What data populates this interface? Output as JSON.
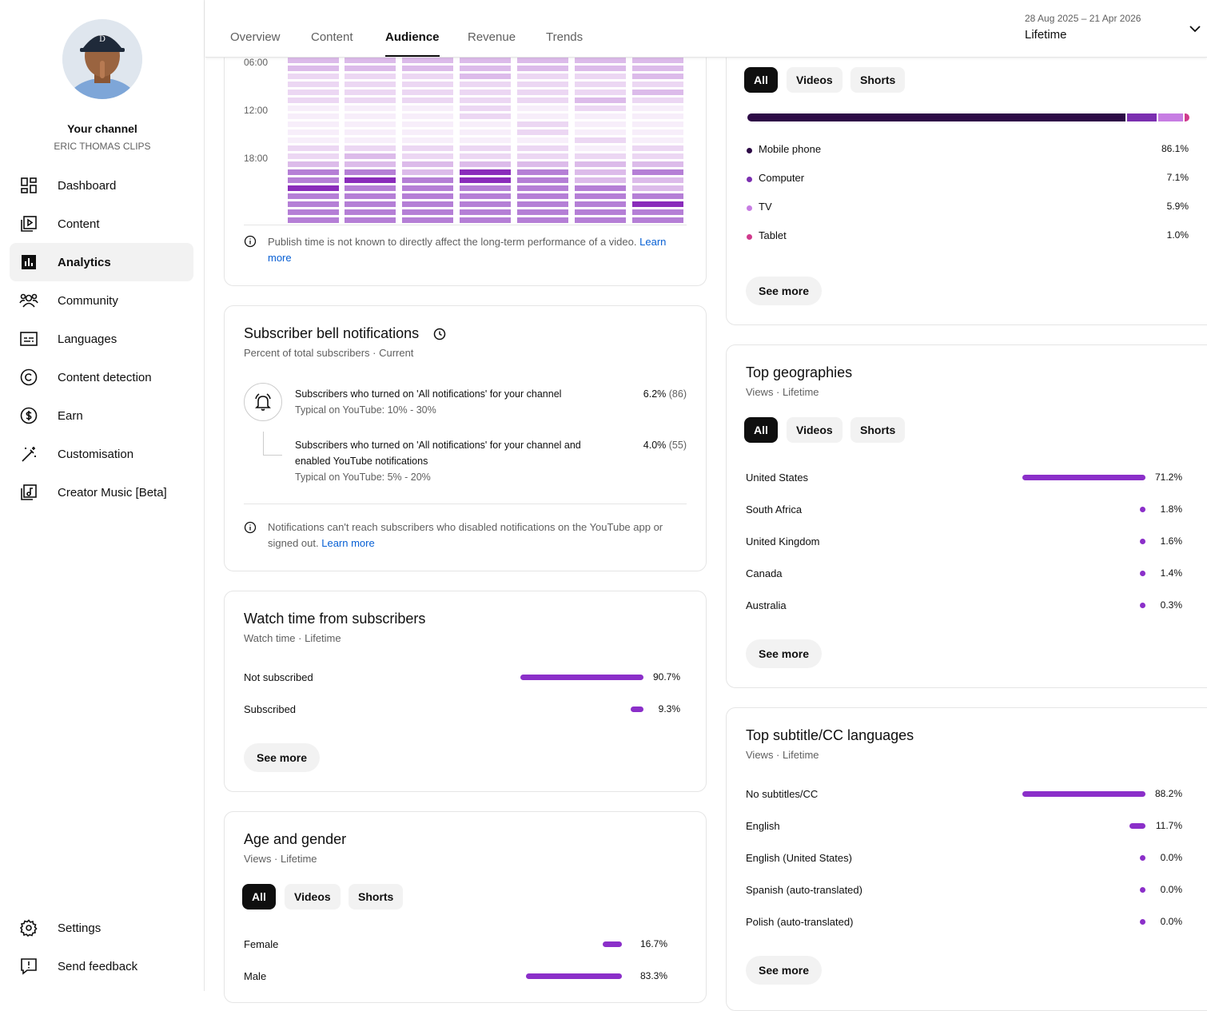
{
  "sidebar": {
    "channel_title": "Your channel",
    "channel_name": "ERIC THOMAS CLIPS",
    "items": [
      {
        "label": "Dashboard",
        "icon": "dashboard-icon"
      },
      {
        "label": "Content",
        "icon": "content-icon"
      },
      {
        "label": "Analytics",
        "icon": "analytics-icon",
        "active": true
      },
      {
        "label": "Community",
        "icon": "community-icon"
      },
      {
        "label": "Languages",
        "icon": "languages-icon"
      },
      {
        "label": "Content detection",
        "icon": "copyright-icon"
      },
      {
        "label": "Earn",
        "icon": "earn-icon"
      },
      {
        "label": "Customisation",
        "icon": "customisation-icon"
      },
      {
        "label": "Creator Music [Beta]",
        "icon": "music-icon"
      }
    ],
    "bottom": [
      {
        "label": "Settings",
        "icon": "gear-icon"
      },
      {
        "label": "Send feedback",
        "icon": "feedback-icon"
      }
    ]
  },
  "header": {
    "tabs": [
      "Overview",
      "Content",
      "Audience",
      "Revenue",
      "Trends"
    ],
    "active_tab": "Audience",
    "date_range": "28 Aug 2025 – 21 Apr 2026",
    "period": "Lifetime"
  },
  "when_viewers_on": {
    "time_labels": [
      "06:00",
      "12:00",
      "18:00"
    ],
    "heatmap_levels": [
      [
        2,
        2,
        2,
        2,
        2,
        2,
        2
      ],
      [
        2,
        2,
        2,
        2,
        2,
        2,
        2
      ],
      [
        1,
        1,
        1,
        2,
        1,
        1,
        2
      ],
      [
        1,
        1,
        1,
        1,
        1,
        1,
        1
      ],
      [
        1,
        1,
        1,
        1,
        1,
        1,
        2
      ],
      [
        1,
        1,
        1,
        1,
        1,
        2,
        1
      ],
      [
        0,
        0,
        0,
        1,
        0,
        1,
        0
      ],
      [
        0,
        0,
        0,
        1,
        0,
        0,
        0
      ],
      [
        0,
        0,
        0,
        0,
        1,
        0,
        0
      ],
      [
        0,
        0,
        0,
        0,
        1,
        0,
        0
      ],
      [
        0,
        0,
        0,
        0,
        0,
        1,
        0
      ],
      [
        1,
        1,
        1,
        1,
        1,
        0,
        1
      ],
      [
        1,
        2,
        1,
        1,
        1,
        1,
        1
      ],
      [
        2,
        2,
        2,
        2,
        2,
        2,
        2
      ],
      [
        3,
        3,
        2,
        4,
        3,
        2,
        3
      ],
      [
        3,
        4,
        3,
        4,
        3,
        2,
        2
      ],
      [
        4,
        3,
        3,
        3,
        3,
        3,
        2
      ],
      [
        3,
        3,
        3,
        3,
        3,
        3,
        3
      ],
      [
        3,
        3,
        3,
        3,
        3,
        3,
        4
      ],
      [
        3,
        3,
        3,
        3,
        3,
        3,
        3
      ],
      [
        3,
        3,
        3,
        3,
        3,
        3,
        3
      ]
    ],
    "note": "Publish time is not known to directly affect the long-term performance of a video.",
    "note_link": "Learn",
    "note_link2": "more"
  },
  "bell": {
    "title": "Subscriber bell notifications",
    "subtitle": "Percent of total subscribers · Current",
    "row1_text": "Subscribers who turned on 'All notifications' for your channel",
    "row1_typical": "Typical on YouTube: 10% - 30%",
    "row1_pct": "6.2%",
    "row1_count": "(86)",
    "row2_text_a": "Subscribers who turned on 'All notifications' for your channel and",
    "row2_text_b": "enabled YouTube notifications",
    "row2_typical": "Typical on YouTube: 5% - 20%",
    "row2_pct": "4.0%",
    "row2_count": "(55)",
    "note_a": "Notifications can't reach subscribers who disabled notifications on the YouTube app or",
    "note_b": "signed out.",
    "note_link": "Learn more"
  },
  "watch_time": {
    "title": "Watch time from subscribers",
    "subtitle": "Watch time · Lifetime",
    "rows": [
      {
        "label": "Not subscribed",
        "value": "90.7%",
        "fraction": 0.907
      },
      {
        "label": "Subscribed",
        "value": "9.3%",
        "fraction": 0.093
      }
    ],
    "see_more": "See more"
  },
  "age_gender": {
    "title": "Age and gender",
    "subtitle": "Views · Lifetime",
    "filters": [
      "All",
      "Videos",
      "Shorts"
    ],
    "rows": [
      {
        "label": "Female",
        "value": "16.7%",
        "fraction": 0.167
      },
      {
        "label": "Male",
        "value": "83.3%",
        "fraction": 0.833
      }
    ]
  },
  "device": {
    "filters": [
      "All",
      "Videos",
      "Shorts"
    ],
    "rows": [
      {
        "label": "Mobile phone",
        "value": "86.1%",
        "fraction": 0.861,
        "color": "#2d0a46"
      },
      {
        "label": "Computer",
        "value": "7.1%",
        "fraction": 0.071,
        "color": "#7b2fb0"
      },
      {
        "label": "TV",
        "value": "5.9%",
        "fraction": 0.059,
        "color": "#c77de3"
      },
      {
        "label": "Tablet",
        "value": "1.0%",
        "fraction": 0.01,
        "color": "#d03a8c"
      }
    ],
    "see_more": "See more"
  },
  "geo": {
    "title": "Top geographies",
    "subtitle": "Views · Lifetime",
    "filters": [
      "All",
      "Videos",
      "Shorts"
    ],
    "rows": [
      {
        "label": "United States",
        "value": "71.2%",
        "fraction": 0.712
      },
      {
        "label": "South Africa",
        "value": "1.8%",
        "fraction": 0.018
      },
      {
        "label": "United Kingdom",
        "value": "1.6%",
        "fraction": 0.016
      },
      {
        "label": "Canada",
        "value": "1.4%",
        "fraction": 0.014
      },
      {
        "label": "Australia",
        "value": "0.3%",
        "fraction": 0.003
      }
    ],
    "see_more": "See more"
  },
  "subtitles": {
    "title": "Top subtitle/CC languages",
    "subtitle": "Views · Lifetime",
    "rows": [
      {
        "label": "No subtitles/CC",
        "value": "88.2%",
        "fraction": 0.882
      },
      {
        "label": "English",
        "value": "11.7%",
        "fraction": 0.117
      },
      {
        "label": "English (United States)",
        "value": "0.0%",
        "fraction": 0.0
      },
      {
        "label": "Spanish (auto-translated)",
        "value": "0.0%",
        "fraction": 0.0
      },
      {
        "label": "Polish (auto-translated)",
        "value": "0.0%",
        "fraction": 0.0
      }
    ],
    "see_more": "See more"
  },
  "colors": {
    "accent": "#8b2fc9",
    "link": "#065fd4"
  }
}
